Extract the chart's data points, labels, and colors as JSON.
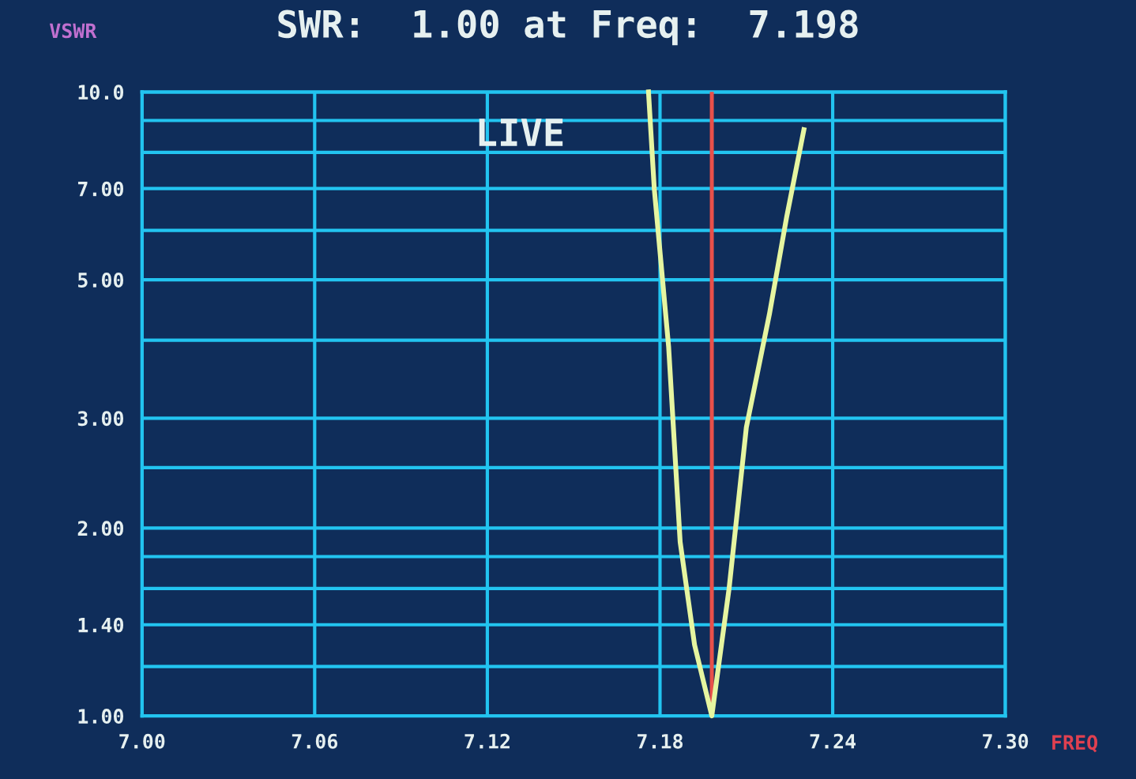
{
  "chart_data": {
    "type": "line",
    "title": "SWR:  1.00 at Freq:  7.198",
    "xlabel": "FREQ",
    "ylabel": "VSWR",
    "annotations": [
      "LIVE"
    ],
    "series": [
      {
        "color": "#e6f5a0",
        "x": [
          7.176,
          7.178,
          7.183,
          7.187,
          7.192,
          7.198,
          7.204,
          7.21,
          7.218,
          7.224,
          7.23
        ],
        "values": [
          10,
          7.0,
          3.9,
          1.9,
          1.3,
          1.0,
          1.6,
          2.9,
          4.4,
          6.3,
          8.7
        ]
      }
    ],
    "ref_lines": [
      {
        "axis": "x",
        "value": 7.198,
        "color": "#e8504a"
      }
    ],
    "log": "y",
    "xlim": [
      7.0,
      7.3
    ],
    "xticks": [
      {
        "value": 7.0,
        "label": "7.00"
      },
      7.06,
      7.12,
      7.18,
      7.24,
      {
        "value": 7.3,
        "label": "7.30"
      }
    ],
    "ylim": [
      1,
      10
    ],
    "yticks": [
      {
        "value": 1,
        "label": "1.00"
      },
      {
        "value": 1.2,
        "label": null
      },
      {
        "value": 1.4,
        "label": "1.40"
      },
      {
        "value": 1.6,
        "label": null
      },
      {
        "value": 1.8,
        "label": null
      },
      {
        "value": 2,
        "label": "2.00"
      },
      {
        "value": 2.5,
        "label": null
      },
      {
        "value": 3,
        "label": "3.00"
      },
      {
        "value": 4,
        "label": null
      },
      {
        "value": 5,
        "label": "5.00"
      },
      {
        "value": 6,
        "label": null
      },
      {
        "value": 7,
        "label": "7.00"
      },
      {
        "value": 8,
        "label": null
      },
      {
        "value": 9,
        "label": null
      },
      {
        "value": 10,
        "label": "10.0"
      }
    ],
    "grid": true,
    "legend": false,
    "marker": "none",
    "line_style": "solid"
  }
}
